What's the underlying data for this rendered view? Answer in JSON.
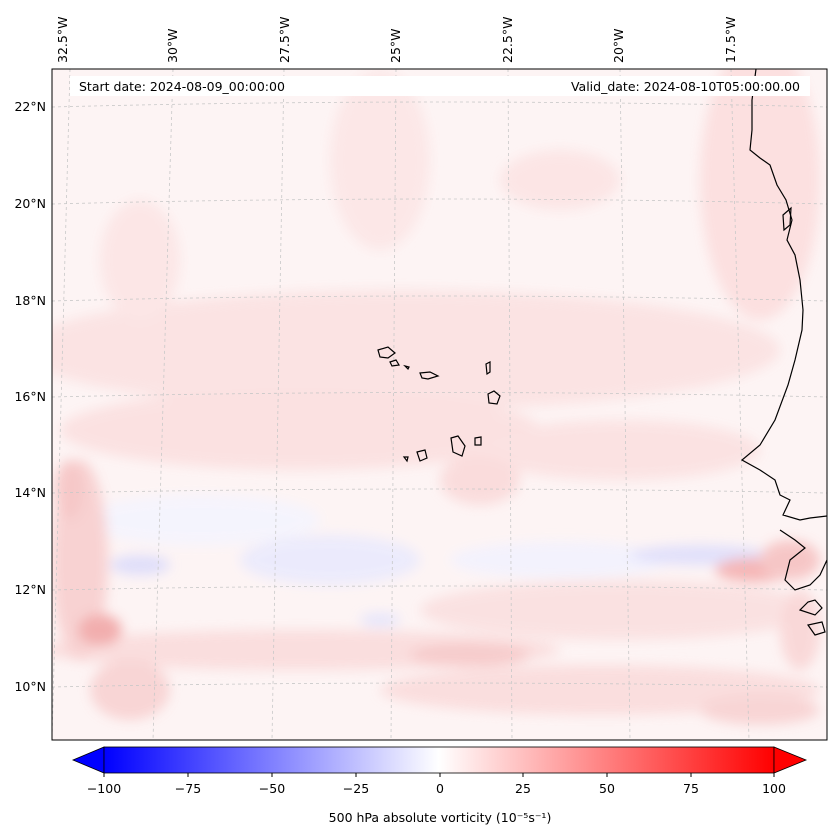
{
  "map": {
    "start_date_label": "Start date: 2024-08-09_00:00:00",
    "valid_date_label": "Valid_date: 2024-08-10T05:00:00.00",
    "lon_ticks": [
      "32.5°W",
      "30°W",
      "27.5°W",
      "25°W",
      "22.5°W",
      "20°W",
      "17.5°W"
    ],
    "lat_ticks": [
      "22°N",
      "20°N",
      "18°N",
      "16°N",
      "14°N",
      "12°N",
      "10°N"
    ],
    "colors": {
      "background_tint": "#fdf4f4",
      "positive": "#ff0000",
      "negative": "#0000ff",
      "coastline": "#000000",
      "gridline": "#c8c8c8"
    }
  },
  "colorbar": {
    "label": "500 hPa absolute vorticity (10⁻⁵s⁻¹)",
    "ticks": [
      "−100",
      "−75",
      "−50",
      "−25",
      "0",
      "25",
      "50",
      "75",
      "100"
    ],
    "range": [
      -100,
      100
    ],
    "cmap": "bwr",
    "extend": "both"
  }
}
